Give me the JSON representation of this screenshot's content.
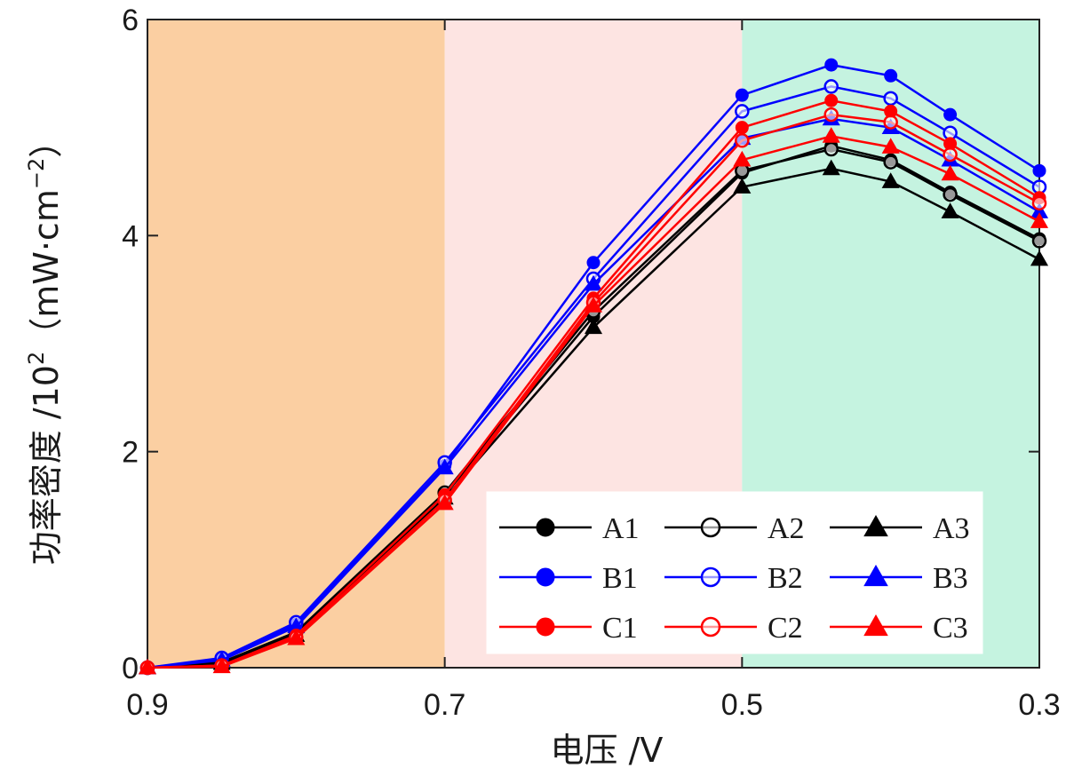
{
  "chart_data": {
    "type": "line",
    "xlabel": "电压 /V",
    "ylabel": "功率密度 /10",
    "ylabel_sup": "2",
    "ylabel_unit": "（mW·cm",
    "ylabel_unit_sup": "−2",
    "ylabel_unit_close": "）",
    "xlim": [
      0.9,
      0.3
    ],
    "ylim": [
      0,
      6
    ],
    "x_reversed": true,
    "xticks": [
      {
        "value": 0.9,
        "label": "0.9"
      },
      {
        "value": 0.7,
        "label": "0.7"
      },
      {
        "value": 0.5,
        "label": "0.5"
      },
      {
        "value": 0.3,
        "label": "0.3"
      }
    ],
    "yticks": [
      {
        "value": 0,
        "label": "0"
      },
      {
        "value": 2,
        "label": "2"
      },
      {
        "value": 4,
        "label": "4"
      },
      {
        "value": 6,
        "label": "6"
      }
    ],
    "regions": [
      {
        "from": 0.9,
        "to": 0.7,
        "color": "#fbcfa2"
      },
      {
        "from": 0.7,
        "to": 0.5,
        "color": "#fde4e2"
      },
      {
        "from": 0.5,
        "to": 0.3,
        "color": "#c5f3e0"
      }
    ],
    "x": [
      0.9,
      0.85,
      0.8,
      0.7,
      0.6,
      0.5,
      0.44,
      0.4,
      0.36,
      0.3
    ],
    "legend_position": "lower-right",
    "series": [
      {
        "name": "A1",
        "color": "#000000",
        "marker": "filled-circle",
        "values": [
          0.0,
          0.05,
          0.32,
          1.6,
          3.25,
          4.58,
          4.83,
          4.7,
          4.4,
          3.97
        ]
      },
      {
        "name": "A2",
        "color": "#000000",
        "marker": "open-circle",
        "values": [
          0.0,
          0.05,
          0.33,
          1.62,
          3.3,
          4.6,
          4.8,
          4.68,
          4.38,
          3.95
        ]
      },
      {
        "name": "A3",
        "color": "#000000",
        "marker": "filled-triangle",
        "values": [
          0.0,
          0.04,
          0.3,
          1.57,
          3.15,
          4.45,
          4.62,
          4.5,
          4.22,
          3.78
        ]
      },
      {
        "name": "B1",
        "color": "#0000ff",
        "marker": "filled-circle",
        "values": [
          0.0,
          0.08,
          0.4,
          1.87,
          3.75,
          5.3,
          5.58,
          5.48,
          5.12,
          4.6
        ]
      },
      {
        "name": "B2",
        "color": "#0000ff",
        "marker": "open-circle",
        "values": [
          0.0,
          0.09,
          0.42,
          1.9,
          3.6,
          5.15,
          5.38,
          5.27,
          4.95,
          4.45
        ]
      },
      {
        "name": "B3",
        "color": "#0000ff",
        "marker": "filled-triangle",
        "values": [
          0.0,
          0.07,
          0.38,
          1.85,
          3.55,
          4.9,
          5.08,
          5.0,
          4.7,
          4.22
        ]
      },
      {
        "name": "C1",
        "color": "#ff0000",
        "marker": "filled-circle",
        "values": [
          0.0,
          0.02,
          0.3,
          1.6,
          3.42,
          5.0,
          5.25,
          5.15,
          4.85,
          4.35
        ]
      },
      {
        "name": "C2",
        "color": "#ff0000",
        "marker": "open-circle",
        "values": [
          0.0,
          0.02,
          0.28,
          1.55,
          3.38,
          4.88,
          5.12,
          5.05,
          4.75,
          4.3
        ]
      },
      {
        "name": "C3",
        "color": "#ff0000",
        "marker": "filled-triangle",
        "values": [
          0.0,
          0.01,
          0.27,
          1.52,
          3.35,
          4.7,
          4.92,
          4.82,
          4.57,
          4.13
        ]
      }
    ]
  }
}
